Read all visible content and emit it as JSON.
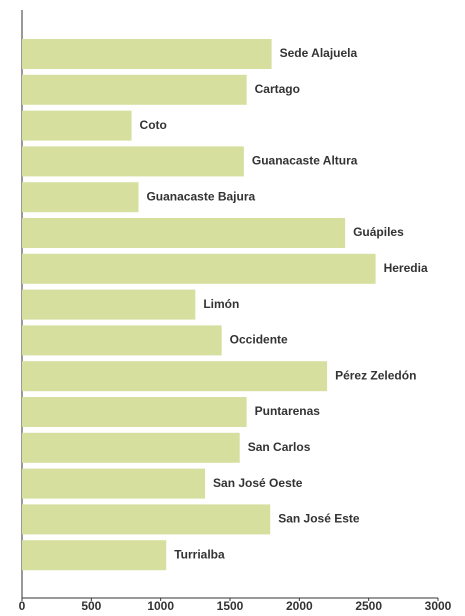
{
  "chart_data": {
    "type": "barh",
    "categories": [
      "Sede Alajuela",
      "Cartago",
      "Coto",
      "Guanacaste Altura",
      "Guanacaste Bajura",
      "Guápiles",
      "Heredia",
      "Limón",
      "Occidente",
      "Pérez Zeledón",
      "Puntarenas",
      "San Carlos",
      "San José Oeste",
      "San José Este",
      "Turrialba"
    ],
    "values": [
      1800,
      1620,
      790,
      1600,
      840,
      2330,
      2550,
      1250,
      1440,
      2200,
      1620,
      1570,
      1320,
      1790,
      1040
    ],
    "color": "#d6df9e",
    "xlim": [
      0,
      3000
    ],
    "xticks": [
      0,
      500,
      1000,
      1500,
      2000,
      2500,
      3000
    ],
    "grid": false
  }
}
